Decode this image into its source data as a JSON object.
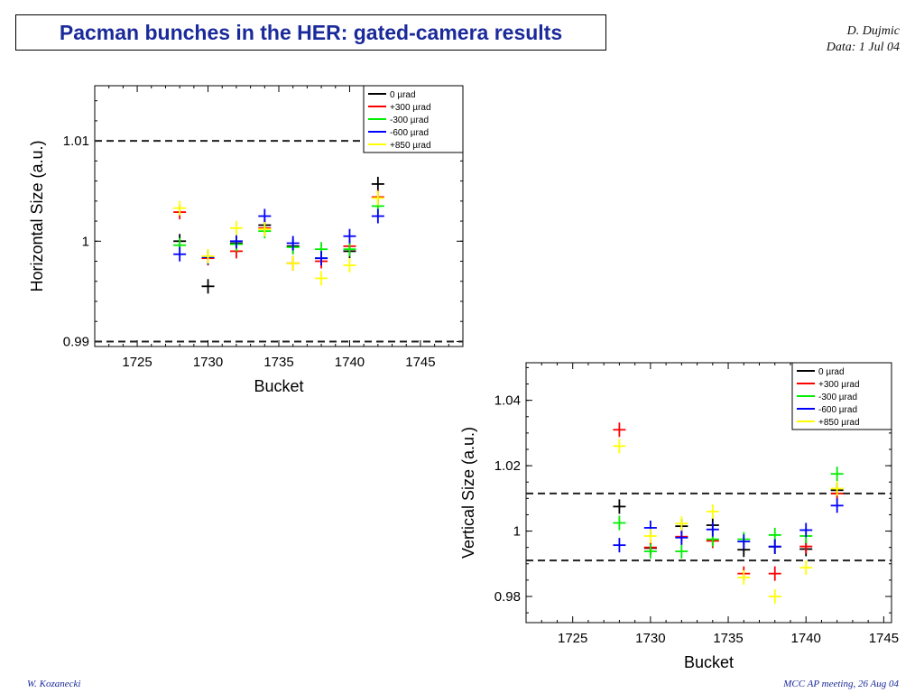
{
  "header": {
    "title": "Pacman bunches in the HER: gated-camera results",
    "author": "D. Dujmic",
    "date": "Data: 1 Jul 04"
  },
  "footer": {
    "left": "W. Kozanecki",
    "right": "MCC AP meeting, 26 Aug 04"
  },
  "chart_data": [
    {
      "type": "scatter",
      "xlabel": "Bucket",
      "ylabel": "Horizontal Size (a.u.)",
      "xlim": [
        1722,
        1748
      ],
      "ylim": [
        0.9895,
        1.0155
      ],
      "xticks": [
        1725,
        1730,
        1735,
        1740,
        1745
      ],
      "xtick_labels": [
        "1725",
        "1730",
        "1735",
        "1740",
        "1745"
      ],
      "yticks": [
        0.99,
        1.0,
        1.01
      ],
      "ytick_labels": [
        "0.99",
        "1",
        "1.01"
      ],
      "reference_lines": [
        0.99,
        1.01
      ],
      "legend_position": "top-right",
      "series": [
        {
          "name": "0 µrad",
          "color": "#000000",
          "x": [
            1728,
            1730,
            1732,
            1734,
            1736,
            1738,
            1740,
            1742
          ],
          "y": [
            1.0,
            0.9955,
            0.9998,
            1.0016,
            0.9995,
            0.9983,
            0.999,
            1.0057
          ]
        },
        {
          "name": "+300 µrad",
          "color": "#ff0000",
          "x": [
            1728,
            1730,
            1732,
            1734,
            1736,
            1738,
            1740,
            1742
          ],
          "y": [
            1.0029,
            0.9983,
            0.999,
            1.0013,
            0.9978,
            0.998,
            0.9995,
            1.0044
          ]
        },
        {
          "name": "-300 µrad",
          "color": "#00ee00",
          "x": [
            1728,
            1730,
            1732,
            1734,
            1736,
            1738,
            1740,
            1742
          ],
          "y": [
            0.9996,
            0.9984,
            0.9997,
            1.001,
            0.9994,
            0.9992,
            0.9992,
            1.0035
          ]
        },
        {
          "name": "-600 µrad",
          "color": "#0000ff",
          "x": [
            1728,
            1730,
            1732,
            1734,
            1736,
            1738,
            1740,
            1742
          ],
          "y": [
            0.9987,
            0.9984,
            1.0,
            1.0025,
            0.9998,
            0.9983,
            1.0005,
            1.0025
          ]
        },
        {
          "name": "+850 µrad",
          "color": "#ffff00",
          "x": [
            1728,
            1730,
            1732,
            1734,
            1736,
            1738,
            1740,
            1742
          ],
          "y": [
            1.0033,
            0.9985,
            1.0013,
            1.0012,
            0.9978,
            0.9963,
            0.9976,
            1.0043
          ]
        }
      ]
    },
    {
      "type": "scatter",
      "xlabel": "Bucket",
      "ylabel": "Vertical Size (a.u.)",
      "xlim": [
        1722,
        1745.5
      ],
      "ylim": [
        0.972,
        1.0515
      ],
      "xticks": [
        1725,
        1730,
        1735,
        1740,
        1745
      ],
      "xtick_labels": [
        "1725",
        "1730",
        "1735",
        "1740",
        "1745"
      ],
      "yticks": [
        0.98,
        1.0,
        1.02,
        1.04
      ],
      "ytick_labels": [
        "0.98",
        "1",
        "1.02",
        "1.04"
      ],
      "reference_lines": [
        0.991,
        1.0115
      ],
      "legend_position": "top-right",
      "series": [
        {
          "name": "0 µrad",
          "color": "#000000",
          "x": [
            1728,
            1730,
            1732,
            1734,
            1736,
            1738,
            1740,
            1742
          ],
          "y": [
            1.0075,
            0.9948,
            1.0015,
            1.0018,
            0.9943,
            0.9952,
            0.9945,
            1.0125
          ]
        },
        {
          "name": "+300 µrad",
          "color": "#ff0000",
          "x": [
            1728,
            1730,
            1732,
            1734,
            1736,
            1738,
            1740,
            1742
          ],
          "y": [
            1.031,
            0.995,
            0.9983,
            0.997,
            0.987,
            0.987,
            0.9953,
            1.0115
          ]
        },
        {
          "name": "-300 µrad",
          "color": "#00ee00",
          "x": [
            1728,
            1730,
            1732,
            1734,
            1736,
            1738,
            1740,
            1742
          ],
          "y": [
            1.0025,
            0.9938,
            0.9938,
            0.9975,
            0.9975,
            0.9988,
            0.9985,
            1.0175
          ]
        },
        {
          "name": "-600 µrad",
          "color": "#0000ff",
          "x": [
            1728,
            1730,
            1732,
            1734,
            1736,
            1738,
            1740,
            1742
          ],
          "y": [
            0.9957,
            1.001,
            0.998,
            1.0005,
            0.9968,
            0.9953,
            1.0003,
            1.0078
          ]
        },
        {
          "name": "+850 µrad",
          "color": "#ffff00",
          "x": [
            1728,
            1730,
            1732,
            1734,
            1736,
            1738,
            1740,
            1742
          ],
          "y": [
            1.026,
            0.9985,
            1.0023,
            1.006,
            0.9858,
            0.98,
            0.9888,
            1.013
          ]
        }
      ]
    }
  ]
}
